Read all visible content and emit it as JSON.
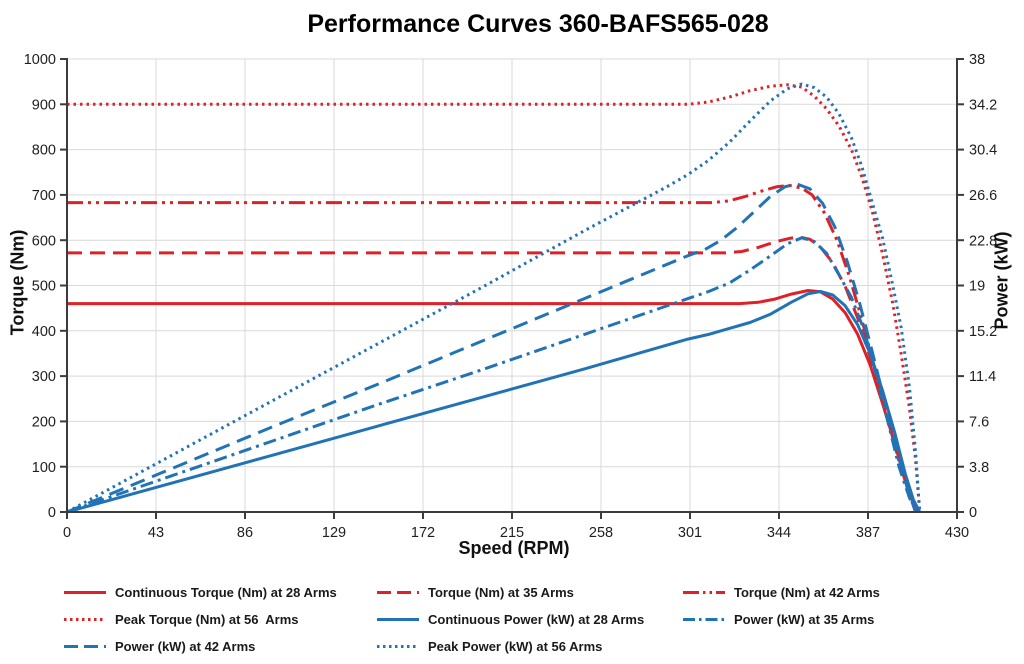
{
  "header": {
    "title": "Performance Curves 360-BAFS565-028"
  },
  "colors": {
    "red": "#df2127",
    "blue": "#2173b6",
    "grid": "#d9d9d9",
    "axis": "#3c3c3c",
    "text": "#1f1f1f"
  },
  "chart_data": {
    "type": "line",
    "title": "Performance Curves 360-BAFS565-028",
    "xlabel": "Speed (RPM)",
    "ylabel_left": "Torque (Nm)",
    "ylabel_right": "Power (kW)",
    "xlim": [
      0,
      430
    ],
    "ylim_left": [
      0,
      1000
    ],
    "ylim_right": [
      0,
      38
    ],
    "grid": true,
    "legend_position": "bottom",
    "x_ticks": [
      "0",
      "43",
      "86",
      "129",
      "172",
      "215",
      "258",
      "301",
      "344",
      "387",
      "430"
    ],
    "y_left_ticks": [
      "0",
      "100",
      "200",
      "300",
      "400",
      "500",
      "600",
      "700",
      "800",
      "900",
      "1000"
    ],
    "y_right_ticks": [
      "0",
      "3.8",
      "7.6",
      "11.4",
      "15.2",
      "19",
      "22.8",
      "26.6",
      "30.4",
      "34.2",
      "38"
    ],
    "series": [
      {
        "name": "Continuous Torque (Nm) at 28 Arms",
        "color": "red",
        "dash": "solid",
        "axis": "left",
        "unit": "Nm",
        "points": [
          [
            0,
            460
          ],
          [
            325,
            460
          ],
          [
            334,
            463
          ],
          [
            342,
            470
          ],
          [
            350,
            481
          ],
          [
            358,
            489
          ],
          [
            364,
            486
          ],
          [
            370,
            470
          ],
          [
            376,
            440
          ],
          [
            382,
            392
          ],
          [
            388,
            325
          ],
          [
            394,
            240
          ],
          [
            400,
            150
          ],
          [
            405,
            70
          ],
          [
            409,
            20
          ],
          [
            411,
            0
          ]
        ]
      },
      {
        "name": "Torque (Nm) at 35 Arms",
        "color": "red",
        "dash": "dash",
        "axis": "left",
        "unit": "Nm",
        "points": [
          [
            0,
            572
          ],
          [
            318,
            572
          ],
          [
            326,
            575
          ],
          [
            334,
            584
          ],
          [
            342,
            596
          ],
          [
            349,
            604
          ],
          [
            354,
            607
          ],
          [
            359,
            602
          ],
          [
            364,
            585
          ],
          [
            370,
            550
          ],
          [
            376,
            498
          ],
          [
            382,
            428
          ],
          [
            388,
            342
          ],
          [
            394,
            248
          ],
          [
            400,
            152
          ],
          [
            405,
            68
          ],
          [
            409,
            18
          ],
          [
            411,
            0
          ]
        ]
      },
      {
        "name": "Torque (Nm) at 42 Arms",
        "color": "red",
        "dash": "dashdotdot",
        "axis": "left",
        "unit": "Nm",
        "points": [
          [
            0,
            683
          ],
          [
            312,
            683
          ],
          [
            320,
            687
          ],
          [
            328,
            697
          ],
          [
            336,
            709
          ],
          [
            343,
            718
          ],
          [
            349,
            721
          ],
          [
            355,
            715
          ],
          [
            360,
            700
          ],
          [
            366,
            660
          ],
          [
            372,
            600
          ],
          [
            378,
            520
          ],
          [
            384,
            425
          ],
          [
            390,
            322
          ],
          [
            396,
            215
          ],
          [
            402,
            112
          ],
          [
            407,
            40
          ],
          [
            410,
            0
          ]
        ]
      },
      {
        "name": "Peak Torque (Nm) at 56  Arms",
        "color": "red",
        "dash": "dot",
        "axis": "left",
        "unit": "Nm",
        "points": [
          [
            0,
            900
          ],
          [
            300,
            900
          ],
          [
            310,
            905
          ],
          [
            320,
            916
          ],
          [
            330,
            930
          ],
          [
            340,
            940
          ],
          [
            348,
            943
          ],
          [
            355,
            938
          ],
          [
            361,
            918
          ],
          [
            367,
            890
          ],
          [
            373,
            852
          ],
          [
            379,
            800
          ],
          [
            384,
            740
          ],
          [
            389,
            665
          ],
          [
            394,
            570
          ],
          [
            399,
            460
          ],
          [
            403,
            350
          ],
          [
            407,
            230
          ],
          [
            410,
            115
          ],
          [
            412,
            0
          ]
        ]
      },
      {
        "name": "Continuous Power (kW) at 28 Arms",
        "color": "blue",
        "dash": "solid",
        "axis": "right",
        "unit": "kW",
        "points": [
          [
            0,
            0
          ],
          [
            50,
            2.4
          ],
          [
            100,
            4.8
          ],
          [
            150,
            7.2
          ],
          [
            200,
            9.6
          ],
          [
            250,
            12.0
          ],
          [
            300,
            14.5
          ],
          [
            310,
            14.9
          ],
          [
            320,
            15.4
          ],
          [
            330,
            15.9
          ],
          [
            340,
            16.6
          ],
          [
            350,
            17.6
          ],
          [
            358,
            18.3
          ],
          [
            364,
            18.5
          ],
          [
            370,
            18.2
          ],
          [
            376,
            17.3
          ],
          [
            382,
            15.7
          ],
          [
            388,
            13.3
          ],
          [
            394,
            10.2
          ],
          [
            400,
            6.6
          ],
          [
            405,
            3.2
          ],
          [
            409,
            1.0
          ],
          [
            412,
            0
          ]
        ]
      },
      {
        "name": "Power (kW) at 35 Arms",
        "color": "blue",
        "dash": "dashdot",
        "axis": "right",
        "unit": "kW",
        "points": [
          [
            0,
            0
          ],
          [
            50,
            3.0
          ],
          [
            100,
            6.0
          ],
          [
            150,
            9.0
          ],
          [
            200,
            11.9
          ],
          [
            250,
            14.9
          ],
          [
            300,
            17.9
          ],
          [
            310,
            18.5
          ],
          [
            320,
            19.2
          ],
          [
            330,
            20.3
          ],
          [
            340,
            21.5
          ],
          [
            348,
            22.5
          ],
          [
            355,
            23.0
          ],
          [
            361,
            22.7
          ],
          [
            367,
            21.7
          ],
          [
            373,
            19.9
          ],
          [
            379,
            18.0
          ],
          [
            385,
            15.3
          ],
          [
            391,
            11.5
          ],
          [
            397,
            7.3
          ],
          [
            402,
            3.8
          ],
          [
            407,
            1.2
          ],
          [
            411,
            0
          ]
        ]
      },
      {
        "name": "Power (kW) at 42 Arms",
        "color": "blue",
        "dash": "dash",
        "axis": "right",
        "unit": "kW",
        "points": [
          [
            0,
            0
          ],
          [
            50,
            3.6
          ],
          [
            100,
            7.2
          ],
          [
            150,
            10.7
          ],
          [
            200,
            14.3
          ],
          [
            250,
            17.9
          ],
          [
            300,
            21.5
          ],
          [
            308,
            22.0
          ],
          [
            316,
            22.8
          ],
          [
            324,
            23.9
          ],
          [
            332,
            25.2
          ],
          [
            340,
            26.5
          ],
          [
            347,
            27.3
          ],
          [
            353,
            27.5
          ],
          [
            359,
            27.1
          ],
          [
            365,
            25.9
          ],
          [
            371,
            23.9
          ],
          [
            377,
            21.0
          ],
          [
            383,
            17.5
          ],
          [
            389,
            13.5
          ],
          [
            395,
            9.3
          ],
          [
            401,
            5.2
          ],
          [
            406,
            2.0
          ],
          [
            410,
            0
          ]
        ]
      },
      {
        "name": "Peak Power (kW) at 56 Arms",
        "color": "blue",
        "dash": "dot",
        "axis": "right",
        "unit": "kW",
        "points": [
          [
            0,
            0
          ],
          [
            50,
            4.7
          ],
          [
            100,
            9.4
          ],
          [
            150,
            14.1
          ],
          [
            200,
            18.8
          ],
          [
            250,
            23.6
          ],
          [
            290,
            27.3
          ],
          [
            300,
            28.3
          ],
          [
            310,
            29.5
          ],
          [
            320,
            31.0
          ],
          [
            330,
            32.8
          ],
          [
            340,
            34.5
          ],
          [
            348,
            35.5
          ],
          [
            355,
            35.9
          ],
          [
            361,
            35.6
          ],
          [
            367,
            34.8
          ],
          [
            373,
            33.4
          ],
          [
            379,
            31.4
          ],
          [
            384,
            29.0
          ],
          [
            389,
            26.0
          ],
          [
            394,
            23.0
          ],
          [
            399,
            19.0
          ],
          [
            403,
            15.5
          ],
          [
            407,
            10.5
          ],
          [
            410,
            5.0
          ],
          [
            412,
            0
          ]
        ]
      }
    ]
  }
}
